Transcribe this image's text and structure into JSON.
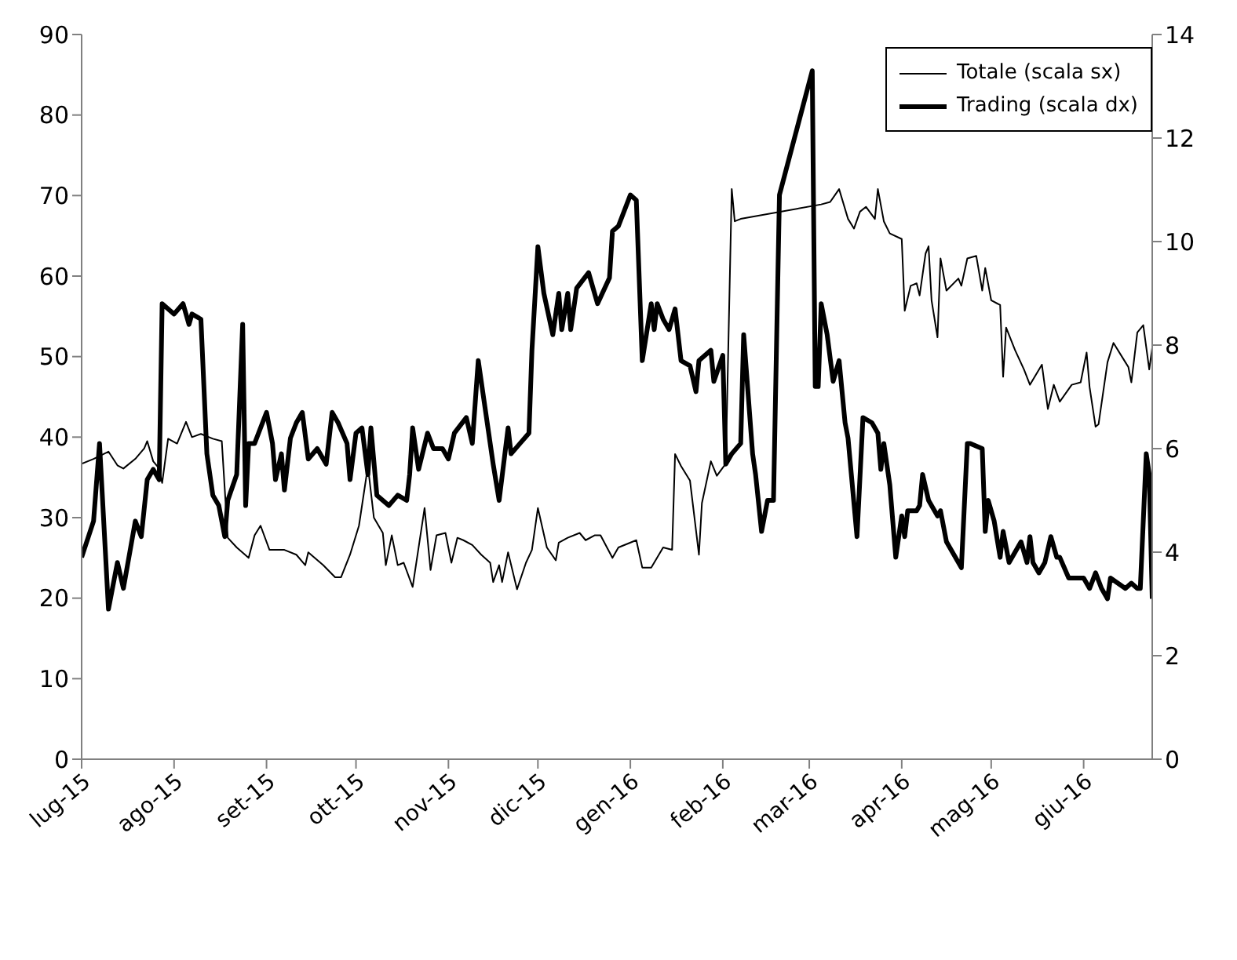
{
  "chart_data": {
    "type": "line",
    "xlim": [
      "2015-07-01",
      "2016-06-24"
    ],
    "xticks": [
      {
        "value": "2015-07-01",
        "label": "lug-15"
      },
      {
        "value": "2015-08-01",
        "label": "ago-15"
      },
      {
        "value": "2015-09-01",
        "label": "set-15"
      },
      {
        "value": "2015-10-01",
        "label": "ott-15"
      },
      {
        "value": "2015-11-01",
        "label": "nov-15"
      },
      {
        "value": "2015-12-01",
        "label": "dic-15"
      },
      {
        "value": "2016-01-01",
        "label": "gen-16"
      },
      {
        "value": "2016-02-01",
        "label": "feb-16"
      },
      {
        "value": "2016-03-01",
        "label": "mar-16"
      },
      {
        "value": "2016-04-01",
        "label": "apr-16"
      },
      {
        "value": "2016-05-01",
        "label": "mag-16"
      },
      {
        "value": "2016-06-01",
        "label": "giu-16"
      }
    ],
    "ylim": [
      0,
      90
    ],
    "yticks": [
      0,
      10,
      20,
      30,
      40,
      50,
      60,
      70,
      80,
      90
    ],
    "y2lim": [
      0,
      14
    ],
    "y2ticks": [
      0,
      2,
      4,
      6,
      8,
      10,
      12,
      14
    ],
    "legend": "top right",
    "marker": "none",
    "line_style": "solid",
    "series": [
      {
        "name": "Totale (scala sx)",
        "color": "#000000",
        "x": [
          "2015-07-01",
          "2015-07-05",
          "2015-07-10",
          "2015-07-13",
          "2015-07-15",
          "2015-07-19",
          "2015-07-22",
          "2015-07-23",
          "2015-07-25",
          "2015-07-27",
          "2015-07-28",
          "2015-07-30",
          "2015-08-02",
          "2015-08-05",
          "2015-08-07",
          "2015-08-10",
          "2015-08-14",
          "2015-08-17",
          "2015-08-19",
          "2015-08-22",
          "2015-08-26",
          "2015-08-28",
          "2015-08-30",
          "2015-09-02",
          "2015-09-07",
          "2015-09-11",
          "2015-09-14",
          "2015-09-15",
          "2015-09-20",
          "2015-09-24",
          "2015-09-26",
          "2015-09-29",
          "2015-10-02",
          "2015-10-05",
          "2015-10-07",
          "2015-10-10",
          "2015-10-11",
          "2015-10-13",
          "2015-10-15",
          "2015-10-17",
          "2015-10-20",
          "2015-10-24",
          "2015-10-26",
          "2015-10-28",
          "2015-10-31",
          "2015-11-02",
          "2015-11-04",
          "2015-11-06",
          "2015-11-09",
          "2015-11-12",
          "2015-11-15",
          "2015-11-16",
          "2015-11-18",
          "2015-11-19",
          "2015-11-21",
          "2015-11-24",
          "2015-11-27",
          "2015-11-29",
          "2015-12-01",
          "2015-12-04",
          "2015-12-07",
          "2015-12-08",
          "2015-12-11",
          "2015-12-15",
          "2015-12-17",
          "2015-12-20",
          "2015-12-22",
          "2015-12-26",
          "2015-12-28",
          "2016-01-03",
          "2016-01-05",
          "2016-01-08",
          "2016-01-12",
          "2016-01-15",
          "2016-01-16",
          "2016-01-18",
          "2016-01-21",
          "2016-01-24",
          "2016-01-25",
          "2016-01-28",
          "2016-01-30",
          "2016-02-02",
          "2016-02-04",
          "2016-02-05",
          "2016-02-07",
          "2016-03-05",
          "2016-03-08",
          "2016-03-11",
          "2016-03-14",
          "2016-03-16",
          "2016-03-18",
          "2016-03-20",
          "2016-03-23",
          "2016-03-24",
          "2016-03-26",
          "2016-03-28",
          "2016-04-01",
          "2016-04-02",
          "2016-04-04",
          "2016-04-06",
          "2016-04-07",
          "2016-04-09",
          "2016-04-10",
          "2016-04-11",
          "2016-04-13",
          "2016-04-14",
          "2016-04-16",
          "2016-04-20",
          "2016-04-21",
          "2016-04-23",
          "2016-04-26",
          "2016-04-28",
          "2016-04-29",
          "2016-05-01",
          "2016-05-04",
          "2016-05-05",
          "2016-05-06",
          "2016-05-09",
          "2016-05-12",
          "2016-05-14",
          "2016-05-18",
          "2016-05-20",
          "2016-05-22",
          "2016-05-24",
          "2016-05-28",
          "2016-05-31",
          "2016-06-02",
          "2016-06-03",
          "2016-06-05",
          "2016-06-06",
          "2016-06-09",
          "2016-06-11",
          "2016-06-15",
          "2016-06-16",
          "2016-06-17",
          "2016-06-19",
          "2016-06-21",
          "2016-06-23",
          "2016-06-24"
        ],
        "values": [
          36.7,
          37.3,
          38.2,
          36.5,
          36.1,
          37.3,
          38.6,
          39.5,
          37.0,
          36.1,
          34.3,
          39.8,
          39.2,
          41.9,
          40.0,
          40.4,
          39.8,
          39.5,
          27.5,
          26.3,
          25.0,
          27.8,
          29.0,
          26.0,
          26.0,
          25.4,
          24.1,
          25.7,
          24.1,
          22.6,
          22.6,
          25.4,
          29.0,
          36.4,
          30.0,
          28.1,
          24.1,
          27.8,
          24.1,
          24.4,
          21.4,
          31.2,
          23.5,
          27.8,
          28.1,
          24.4,
          27.5,
          27.2,
          26.6,
          25.4,
          24.4,
          22.0,
          24.1,
          22.0,
          25.7,
          21.1,
          24.4,
          26.0,
          31.2,
          26.3,
          24.7,
          26.9,
          27.5,
          28.1,
          27.2,
          27.8,
          27.8,
          25.0,
          26.3,
          27.2,
          23.8,
          23.8,
          26.3,
          26.0,
          37.9,
          36.4,
          34.6,
          25.4,
          31.8,
          37.0,
          35.2,
          36.7,
          70.8,
          66.8,
          67.1,
          68.9,
          69.2,
          70.8,
          67.1,
          65.9,
          68.0,
          68.6,
          67.1,
          70.8,
          66.8,
          65.3,
          64.6,
          55.7,
          58.8,
          59.1,
          57.6,
          62.8,
          63.7,
          57.0,
          52.4,
          62.2,
          58.2,
          59.7,
          58.8,
          62.2,
          62.5,
          58.2,
          61.0,
          57.0,
          56.4,
          47.5,
          53.6,
          50.8,
          48.4,
          46.5,
          49.0,
          43.5,
          46.5,
          44.4,
          46.5,
          46.8,
          50.5,
          46.2,
          41.3,
          41.6,
          49.3,
          51.7,
          49.3,
          48.7,
          46.8,
          53.0,
          53.9,
          48.4,
          51.1
        ]
      },
      {
        "name": "Trading (scala dx)",
        "color": "#000000",
        "axis": "y2",
        "x": [
          "2015-07-01",
          "2015-07-05",
          "2015-07-07",
          "2015-07-10",
          "2015-07-13",
          "2015-07-15",
          "2015-07-19",
          "2015-07-21",
          "2015-07-23",
          "2015-07-25",
          "2015-07-27",
          "2015-07-28",
          "2015-08-01",
          "2015-08-04",
          "2015-08-06",
          "2015-08-07",
          "2015-08-10",
          "2015-08-12",
          "2015-08-14",
          "2015-08-16",
          "2015-08-18",
          "2015-08-19",
          "2015-08-22",
          "2015-08-24",
          "2015-08-25",
          "2015-08-26",
          "2015-08-28",
          "2015-09-01",
          "2015-09-03",
          "2015-09-04",
          "2015-09-06",
          "2015-09-07",
          "2015-09-09",
          "2015-09-11",
          "2015-09-13",
          "2015-09-15",
          "2015-09-18",
          "2015-09-21",
          "2015-09-23",
          "2015-09-25",
          "2015-09-28",
          "2015-09-29",
          "2015-10-01",
          "2015-10-03",
          "2015-10-05",
          "2015-10-06",
          "2015-10-08",
          "2015-10-12",
          "2015-10-15",
          "2015-10-18",
          "2015-10-19",
          "2015-10-20",
          "2015-10-22",
          "2015-10-25",
          "2015-10-27",
          "2015-10-30",
          "2015-11-01",
          "2015-11-03",
          "2015-11-07",
          "2015-11-09",
          "2015-11-11",
          "2015-11-14",
          "2015-11-16",
          "2015-11-18",
          "2015-11-21",
          "2015-11-22",
          "2015-11-25",
          "2015-11-28",
          "2015-11-29",
          "2015-12-01",
          "2015-12-03",
          "2015-12-06",
          "2015-12-08",
          "2015-12-09",
          "2015-12-11",
          "2015-12-12",
          "2015-12-14",
          "2015-12-18",
          "2015-12-21",
          "2015-12-25",
          "2015-12-26",
          "2015-12-28",
          "2016-01-01",
          "2016-01-03",
          "2016-01-05",
          "2016-01-08",
          "2016-01-09",
          "2016-01-10",
          "2016-01-12",
          "2016-01-14",
          "2016-01-16",
          "2016-01-18",
          "2016-01-21",
          "2016-01-23",
          "2016-01-24",
          "2016-01-28",
          "2016-01-29",
          "2016-02-01",
          "2016-02-02",
          "2016-02-04",
          "2016-02-07",
          "2016-02-08",
          "2016-02-11",
          "2016-02-12",
          "2016-02-14",
          "2016-02-16",
          "2016-02-18",
          "2016-02-20",
          "2016-03-02",
          "2016-03-03",
          "2016-03-04",
          "2016-03-05",
          "2016-03-07",
          "2016-03-09",
          "2016-03-11",
          "2016-03-13",
          "2016-03-14",
          "2016-03-17",
          "2016-03-19",
          "2016-03-22",
          "2016-03-24",
          "2016-03-25",
          "2016-03-26",
          "2016-03-28",
          "2016-03-30",
          "2016-04-01",
          "2016-04-02",
          "2016-04-03",
          "2016-04-06",
          "2016-04-07",
          "2016-04-08",
          "2016-04-10",
          "2016-04-13",
          "2016-04-14",
          "2016-04-16",
          "2016-04-21",
          "2016-04-23",
          "2016-04-24",
          "2016-04-28",
          "2016-04-29",
          "2016-04-30",
          "2016-05-02",
          "2016-05-04",
          "2016-05-05",
          "2016-05-07",
          "2016-05-11",
          "2016-05-13",
          "2016-05-14",
          "2016-05-15",
          "2016-05-17",
          "2016-05-19",
          "2016-05-21",
          "2016-05-23",
          "2016-05-24",
          "2016-05-27",
          "2016-05-29",
          "2016-06-01",
          "2016-06-03",
          "2016-06-05",
          "2016-06-07",
          "2016-06-09",
          "2016-06-10",
          "2016-06-15",
          "2016-06-17",
          "2016-06-19",
          "2016-06-20",
          "2016-06-22",
          "2016-06-23",
          "2016-06-24"
        ],
        "values": [
          3.9,
          4.6,
          6.1,
          2.9,
          3.8,
          3.3,
          4.6,
          4.3,
          5.4,
          5.6,
          5.4,
          8.8,
          8.6,
          8.8,
          8.4,
          8.6,
          8.5,
          5.9,
          5.1,
          4.9,
          4.3,
          5.0,
          5.5,
          8.4,
          4.9,
          6.1,
          6.1,
          6.7,
          6.1,
          5.4,
          5.9,
          5.2,
          6.2,
          6.5,
          6.7,
          5.8,
          6.0,
          5.7,
          6.7,
          6.5,
          6.1,
          5.4,
          6.3,
          6.4,
          5.5,
          6.4,
          5.1,
          4.9,
          5.1,
          5.0,
          5.5,
          6.4,
          5.6,
          6.3,
          6.0,
          6.0,
          5.8,
          6.3,
          6.6,
          6.1,
          7.7,
          6.5,
          5.7,
          5.0,
          6.4,
          5.9,
          6.1,
          6.3,
          7.9,
          9.9,
          9.0,
          8.2,
          9.0,
          8.3,
          9.0,
          8.3,
          9.1,
          9.4,
          8.8,
          9.3,
          10.2,
          10.3,
          10.9,
          10.8,
          7.7,
          8.8,
          8.3,
          8.8,
          8.5,
          8.3,
          8.7,
          7.7,
          7.6,
          7.1,
          7.7,
          7.9,
          7.3,
          7.8,
          5.7,
          5.9,
          6.1,
          8.2,
          5.9,
          5.5,
          4.4,
          5.0,
          5.0,
          10.9,
          13.3,
          7.2,
          7.2,
          8.8,
          8.2,
          7.3,
          7.7,
          6.5,
          6.2,
          4.3,
          6.6,
          6.5,
          6.3,
          5.6,
          6.1,
          5.3,
          3.9,
          4.7,
          4.3,
          4.8,
          4.8,
          4.9,
          5.5,
          5.0,
          4.7,
          4.8,
          4.2,
          3.7,
          6.1,
          6.1,
          6.0,
          4.4,
          5.0,
          4.6,
          3.9,
          4.4,
          3.8,
          4.2,
          3.8,
          4.3,
          3.8,
          3.6,
          3.8,
          4.3,
          3.9,
          3.9,
          3.5,
          3.5,
          3.5,
          3.3,
          3.6,
          3.3,
          3.1,
          3.5,
          3.3,
          3.4,
          3.3,
          3.3,
          5.9,
          5.5,
          3.1
        ]
      }
    ]
  }
}
